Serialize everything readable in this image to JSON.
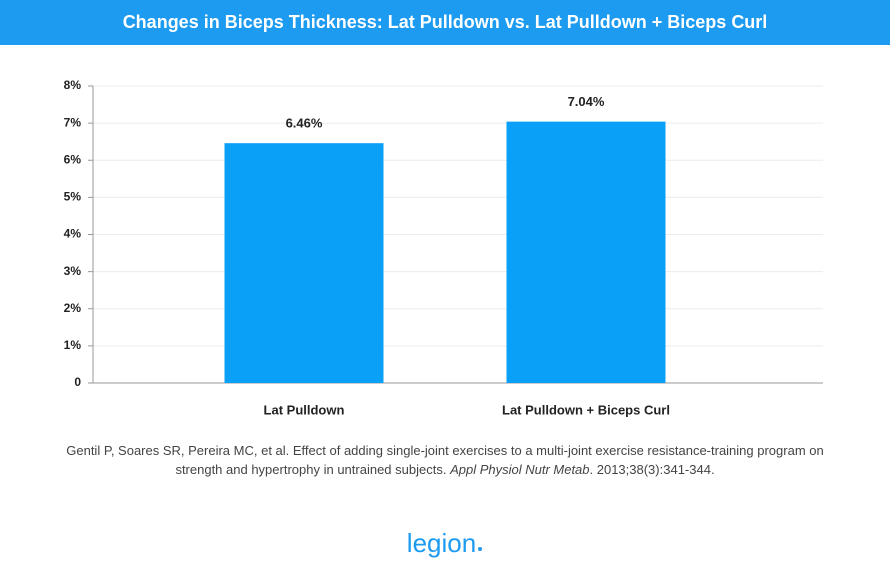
{
  "chart_data": {
    "type": "bar",
    "title": "Changes in Biceps Thickness: Lat Pulldown vs. Lat Pulldown + Biceps Curl",
    "categories": [
      "Lat Pulldown",
      "Lat Pulldown + Biceps Curl"
    ],
    "values": [
      6.46,
      7.04
    ],
    "value_labels": [
      "6.46%",
      "7.04%"
    ],
    "color": "#0aa0f7",
    "ylim": [
      0,
      8
    ],
    "yticks": [
      0,
      {
        "value": 1,
        "label": "1%"
      },
      {
        "value": 2,
        "label": "2%"
      },
      {
        "value": 3,
        "label": "3%"
      },
      {
        "value": 4,
        "label": "4%"
      },
      {
        "value": 5,
        "label": "5%"
      },
      {
        "value": 6,
        "label": "6%"
      },
      {
        "value": 7,
        "label": "7%"
      },
      {
        "value": 8,
        "label": "8%"
      }
    ],
    "grid": true
  },
  "citation": [
    "Gentil P, Soares SR, Pereira MC, et al. Effect of adding single-joint exercises to a multi-joint exercise resistance-training program on strength and hypertrophy in untrained subjects. ",
    "Appl Physiol Nutr Metab",
    ". 2013;38(3):341-344."
  ],
  "logo": "legion"
}
